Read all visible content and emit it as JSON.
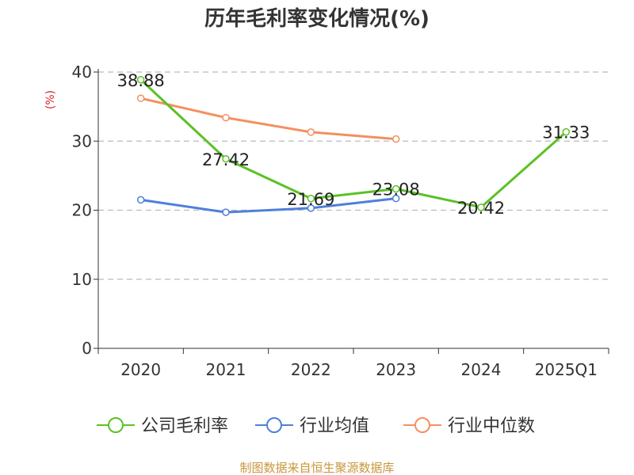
{
  "chart_data": {
    "type": "line",
    "title": "历年毛利率变化情况(%)",
    "ylabel": "(%)",
    "xlabel": "",
    "ylim": [
      0,
      40
    ],
    "yticks": [
      0,
      10,
      20,
      30,
      40
    ],
    "grid": true,
    "categories": [
      "2020",
      "2021",
      "2022",
      "2023",
      "2024",
      "2025Q1"
    ],
    "series": [
      {
        "name": "公司毛利率",
        "color": "#5bc126",
        "values": [
          38.88,
          27.42,
          21.69,
          23.08,
          20.42,
          31.33
        ],
        "labels": [
          "38.88",
          "27.42",
          "21.69",
          "23.08",
          "20.42",
          "31.33"
        ]
      },
      {
        "name": "行业均值",
        "color": "#4e7fdb",
        "values": [
          21.5,
          19.7,
          20.3,
          21.7,
          null,
          null
        ]
      },
      {
        "name": "行业中位数",
        "color": "#f39060",
        "values": [
          36.2,
          33.4,
          31.3,
          30.3,
          null,
          null
        ]
      }
    ],
    "legend_position": "bottom"
  },
  "colors": {
    "axis": "#333333",
    "grid": "#bbbbbb",
    "ylabel": "#d62728",
    "source": "#c8963c"
  },
  "footer": {
    "source": "制图数据来自恒生聚源数据库"
  }
}
